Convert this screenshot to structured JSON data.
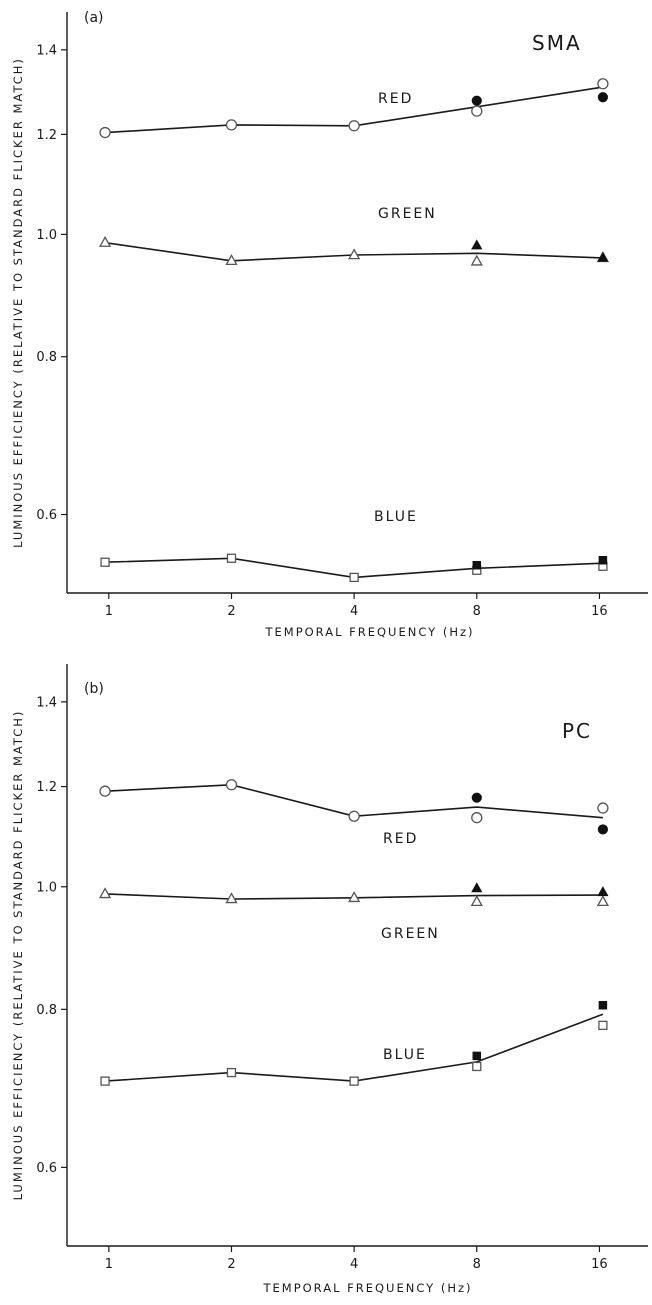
{
  "chart_data": [
    {
      "type": "line",
      "panel_label": "(a)",
      "subject": "SMA",
      "xlabel": "TEMPORAL FREQUENCY (Hz)",
      "ylabel": "LUMINOUS EFFICIENCY (RELATIVE TO STANDARD FLICKER MATCH)",
      "x_scale": "log2",
      "x_ticks": [
        1,
        2,
        4,
        8,
        16
      ],
      "x_tick_labels": [
        "1",
        "2",
        "4",
        "8",
        "16"
      ],
      "y_scale": "log",
      "y_ticks": [
        0.6,
        0.8,
        1.0,
        1.2,
        1.4
      ],
      "y_tick_labels": [
        "0.6",
        "0.8",
        "1.0",
        "1.2",
        "1.4"
      ],
      "xlim": [
        0.75,
        20
      ],
      "ylim": [
        0.52,
        1.5
      ],
      "grid": false,
      "series": [
        {
          "name": "RED",
          "marker": "circle",
          "line_x": [
            0.93,
            1.9,
            3.8,
            7.6,
            15.5
          ],
          "line_y": [
            1.204,
            1.221,
            1.219,
            1.262,
            1.308
          ],
          "open_x": [
            0.93,
            1.9,
            3.8,
            7.6,
            15.5
          ],
          "open_y": [
            1.204,
            1.221,
            1.219,
            1.252,
            1.316
          ],
          "filled_x": [
            7.6,
            15.5
          ],
          "filled_y": [
            1.276,
            1.284
          ]
        },
        {
          "name": "GREEN",
          "marker": "triangle",
          "line_x": [
            0.93,
            1.9,
            3.8,
            7.6,
            15.5
          ],
          "line_y": [
            0.985,
            0.953,
            0.963,
            0.966,
            0.958
          ],
          "open_x": [
            0.93,
            1.9,
            3.8,
            7.6,
            15.5
          ],
          "open_y": [
            0.985,
            0.953,
            0.963,
            0.952,
            0.958
          ],
          "filled_x": [
            7.6,
            15.5
          ],
          "filled_y": [
            0.98,
            0.958
          ]
        },
        {
          "name": "BLUE",
          "marker": "square",
          "line_x": [
            0.93,
            1.9,
            3.8,
            7.6,
            15.5
          ],
          "line_y": [
            0.55,
            0.554,
            0.535,
            0.544,
            0.549
          ],
          "open_x": [
            0.93,
            1.9,
            3.8,
            7.6,
            15.5
          ],
          "open_y": [
            0.55,
            0.554,
            0.535,
            0.542,
            0.546
          ],
          "filled_x": [
            7.6,
            15.5
          ],
          "filled_y": [
            0.547,
            0.552
          ]
        }
      ]
    },
    {
      "type": "line",
      "panel_label": "(b)",
      "subject": "PC",
      "xlabel": "TEMPORAL FREQUENCY (Hz)",
      "ylabel": "LUMINOUS EFFICIENCY (RELATIVE TO STANDARD FLICKER MATCH)",
      "x_scale": "log2",
      "x_ticks": [
        1,
        2,
        4,
        8,
        16
      ],
      "x_tick_labels": [
        "1",
        "2",
        "4",
        "8",
        "16"
      ],
      "y_scale": "log",
      "y_ticks": [
        0.6,
        0.8,
        1.0,
        1.2,
        1.4
      ],
      "y_tick_labels": [
        "0.6",
        "0.8",
        "1.0",
        "1.2",
        "1.4"
      ],
      "xlim": [
        0.75,
        20
      ],
      "ylim": [
        0.52,
        1.5
      ],
      "grid": false,
      "series": [
        {
          "name": "RED",
          "marker": "circle",
          "line_x": [
            0.93,
            1.9,
            3.8,
            7.6,
            15.5
          ],
          "line_y": [
            1.19,
            1.204,
            1.137,
            1.156,
            1.134
          ],
          "open_x": [
            0.93,
            1.9,
            3.8,
            7.6,
            15.5
          ],
          "open_y": [
            1.19,
            1.204,
            1.137,
            1.134,
            1.154
          ],
          "filled_x": [
            7.6,
            15.5
          ],
          "filled_y": [
            1.176,
            1.11
          ]
        },
        {
          "name": "GREEN",
          "marker": "triangle",
          "line_x": [
            0.93,
            1.9,
            3.8,
            7.6,
            15.5
          ],
          "line_y": [
            0.987,
            0.978,
            0.98,
            0.984,
            0.985
          ],
          "open_x": [
            0.93,
            1.9,
            3.8,
            7.6,
            15.5
          ],
          "open_y": [
            0.987,
            0.978,
            0.98,
            0.973,
            0.973
          ],
          "filled_x": [
            7.6,
            15.5
          ],
          "filled_y": [
            0.997,
            0.99
          ]
        },
        {
          "name": "BLUE",
          "marker": "square",
          "line_x": [
            0.93,
            1.9,
            3.8,
            7.6,
            15.5
          ],
          "line_y": [
            0.702,
            0.713,
            0.702,
            0.727,
            0.793
          ],
          "open_x": [
            0.93,
            1.9,
            3.8,
            7.6,
            15.5
          ],
          "open_y": [
            0.702,
            0.713,
            0.702,
            0.721,
            0.777
          ],
          "filled_x": [
            7.6,
            15.5
          ],
          "filled_y": [
            0.735,
            0.806
          ]
        }
      ]
    }
  ]
}
